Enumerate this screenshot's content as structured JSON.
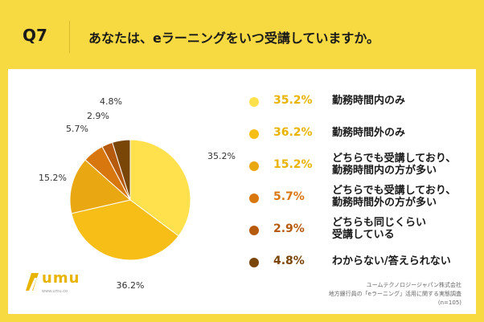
{
  "question": {
    "label": "Q7",
    "title": "あなたは、eラーニングをいつ受講していますか。"
  },
  "chart_data": {
    "type": "pie",
    "categories": [
      "勤務時間内のみ",
      "勤務時間外のみ",
      "どちらでも受講しており、勤務時間内の方が多い",
      "どちらでも受講しており、勤務時間外の方が多い",
      "どちらも同じくらい受講している",
      "わからない/答えられない"
    ],
    "values": [
      35.2,
      36.2,
      15.2,
      5.7,
      2.9,
      4.8
    ],
    "value_labels": [
      "35.2%",
      "36.2%",
      "15.2%",
      "5.7%",
      "2.9%",
      "4.8%"
    ],
    "colors": [
      "#FFE14D",
      "#F6BE16",
      "#E9A812",
      "#D9770F",
      "#B65A0E",
      "#7A4607"
    ],
    "legend_lines": [
      [
        "勤務時間内のみ"
      ],
      [
        "勤務時間外のみ"
      ],
      [
        "どちらでも受講しており、",
        "勤務時間内の方が多い"
      ],
      [
        "どちらでも受講しており、",
        "勤務時間外の方が多い"
      ],
      [
        "どちらも同じくらい",
        "受講している"
      ],
      [
        "わからない/答えられない"
      ]
    ],
    "legend_placement": "right",
    "start_angle_deg": 0,
    "direction": "clockwise"
  },
  "source": {
    "line1": "ユームテクノロジージャパン株式会社",
    "line2": "地方銀行員の「eラーニング」活用に関する実態調査",
    "line3": "(n=105)"
  },
  "logo": {
    "text": "umu",
    "sub": "www.umu.co"
  }
}
